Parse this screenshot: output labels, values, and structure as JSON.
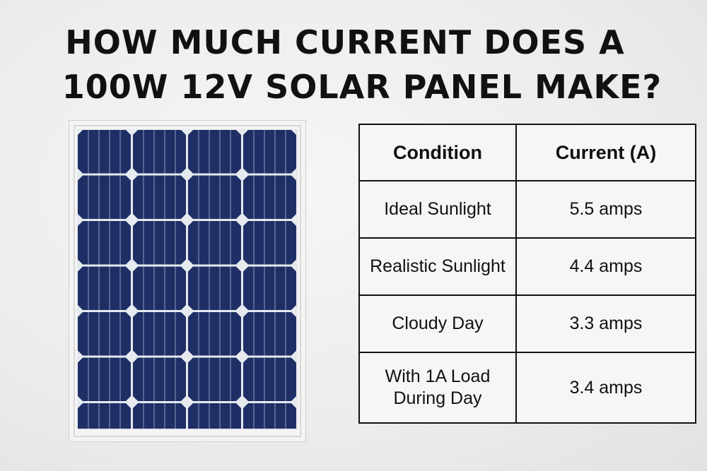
{
  "title": {
    "line1": "HOW MUCH CURRENT DOES A",
    "line2": "100W 12V SOLAR PANEL MAKE?"
  },
  "table": {
    "headers": [
      "Condition",
      "Current (A)"
    ],
    "rows": [
      {
        "condition": "Ideal Sunlight",
        "current": "5.5 amps"
      },
      {
        "condition": "Realistic Sunlight",
        "current": "4.4 amps"
      },
      {
        "condition": "Cloudy Day",
        "current": "3.3 amps"
      },
      {
        "condition_line1": "With 1A Load",
        "condition_line2": "During Day",
        "current": "3.4 amps"
      }
    ]
  },
  "colors": {
    "cell": "#1f2f66",
    "frame": "#f4f4f4",
    "text": "#111111"
  }
}
